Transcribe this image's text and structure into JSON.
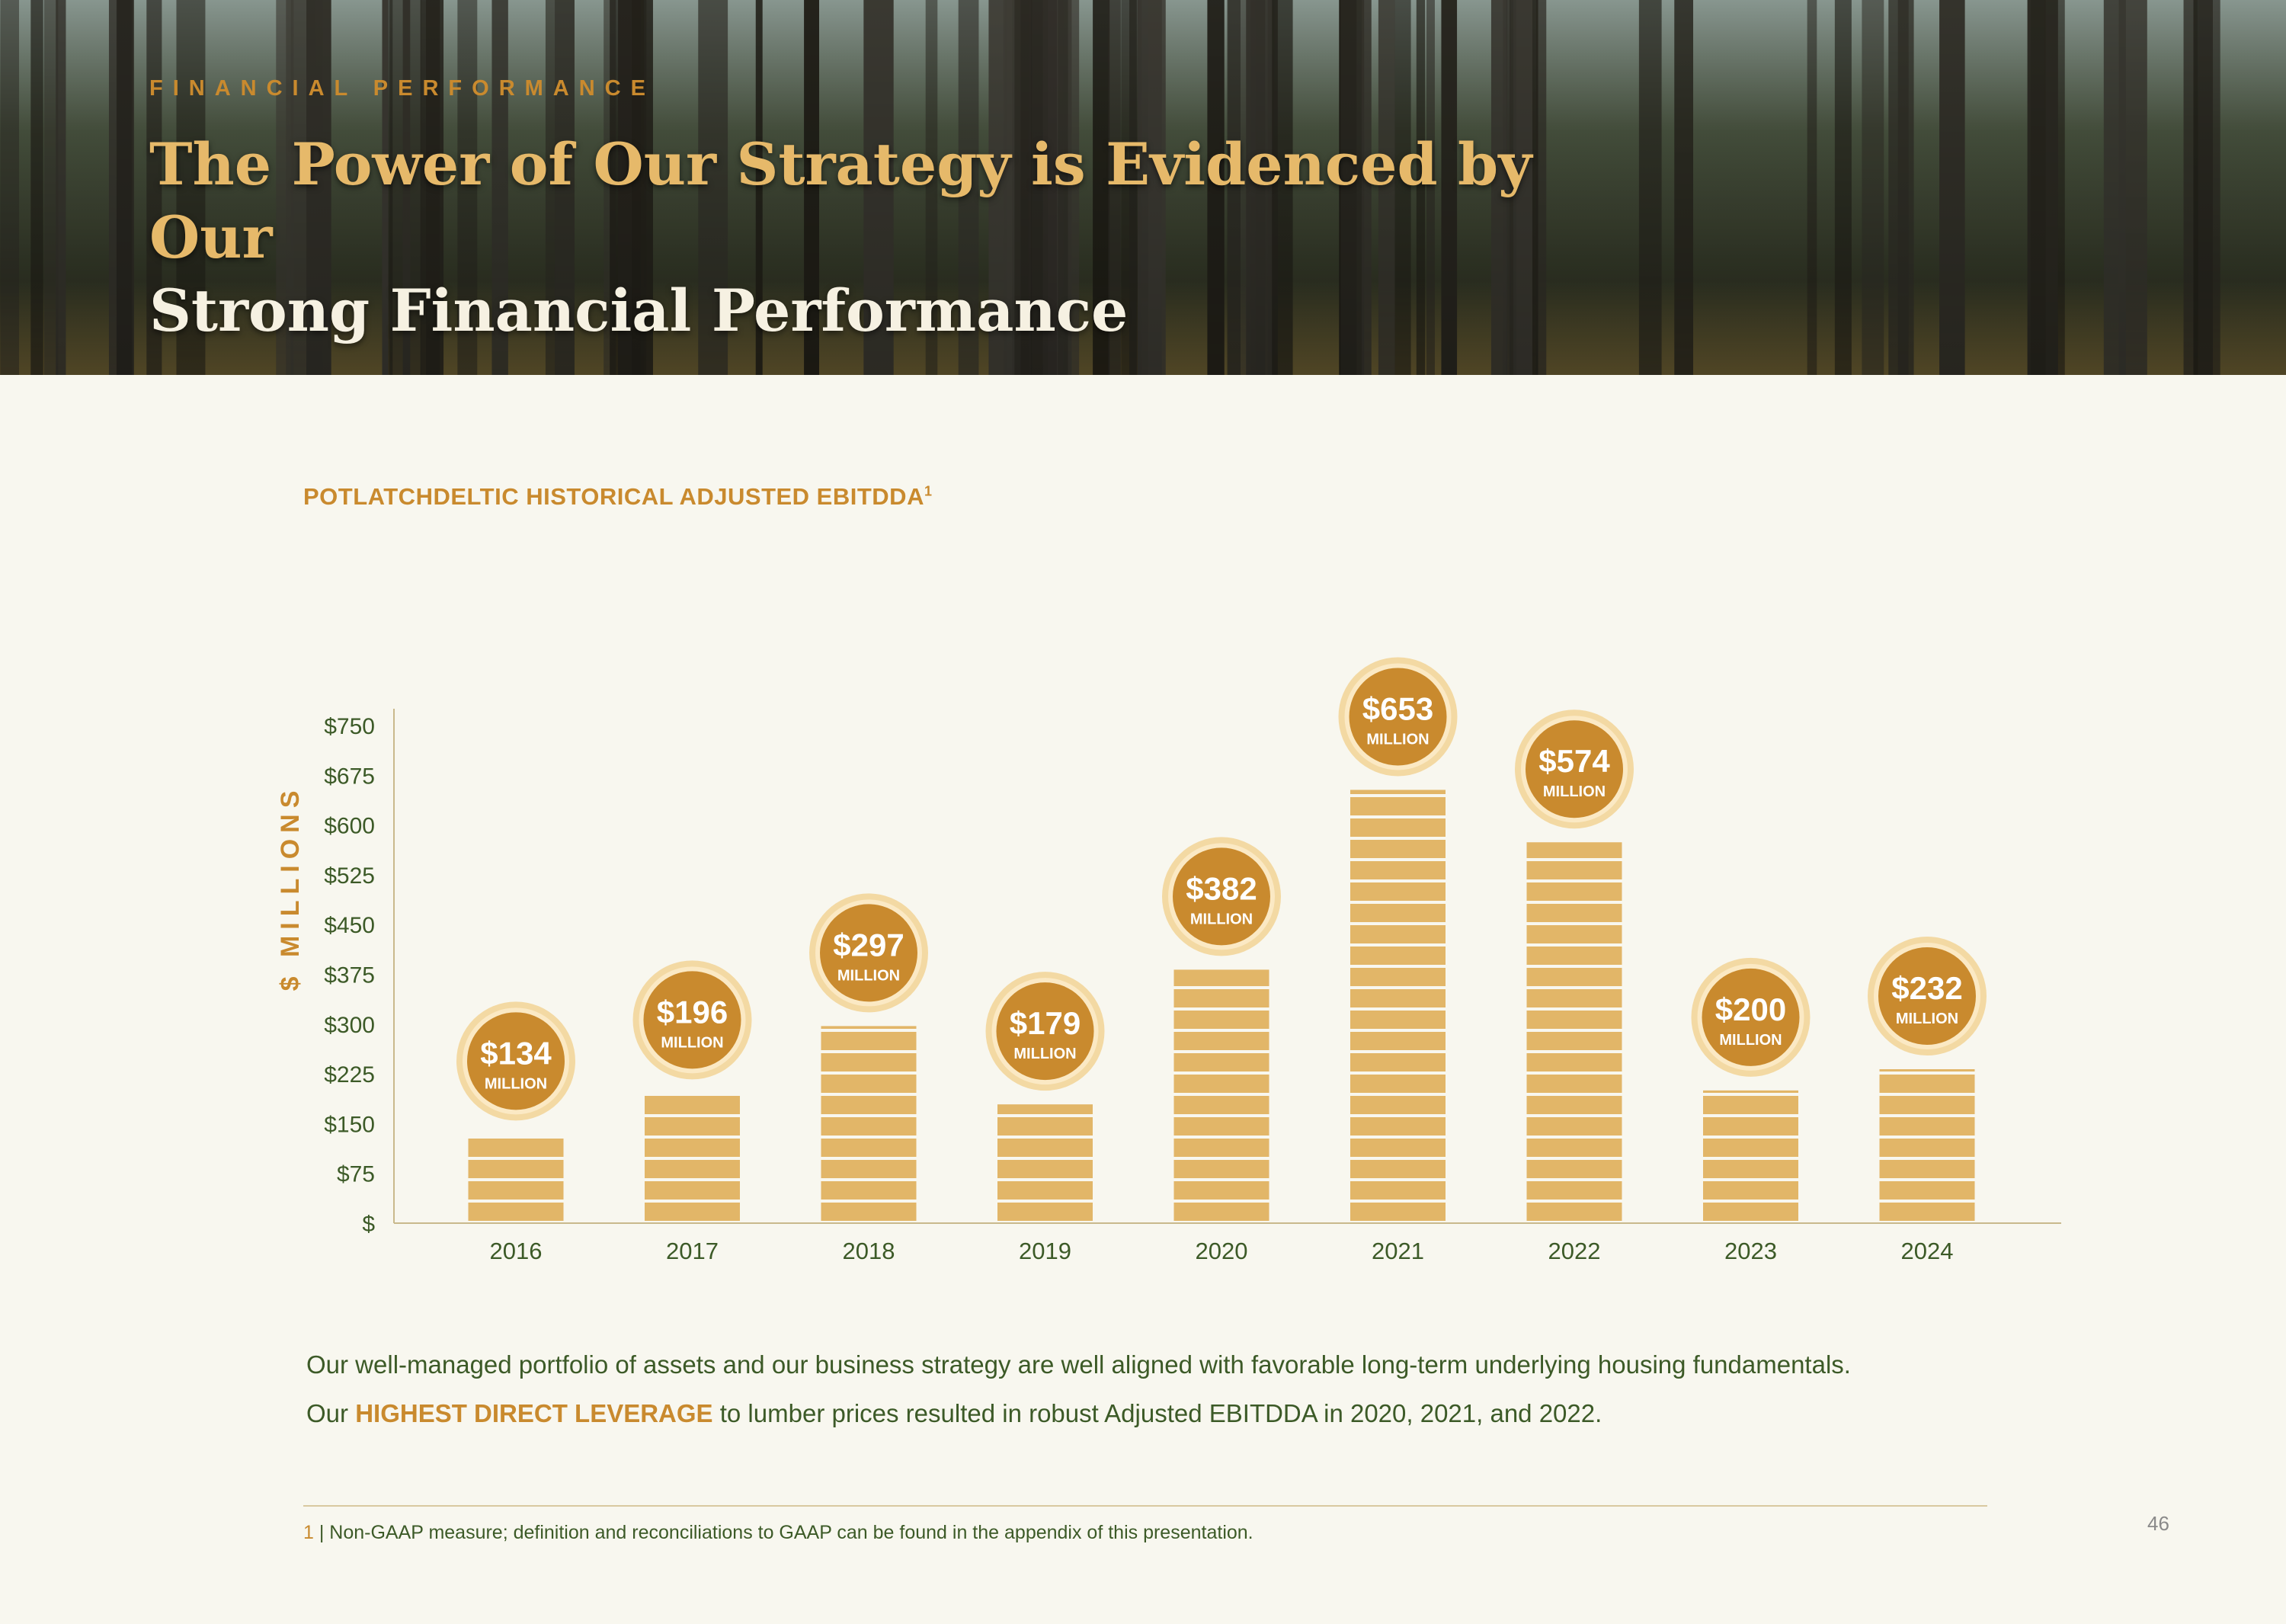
{
  "header": {
    "eyebrow": "FINANCIAL PERFORMANCE",
    "title_line1": "The Power of Our Strategy is Evidenced by Our",
    "title_line2": "Strong Financial Performance"
  },
  "colors": {
    "accent": "#c98a2e",
    "bar": "#e2b668",
    "badge": "#c98a2e",
    "text_green": "#3c5a27"
  },
  "chart_data": {
    "type": "bar",
    "title": "POTLATCHDELTIC HISTORICAL ADJUSTED EBITDDA",
    "title_sup": "1",
    "ylabel": "$ MILLIONS",
    "ylim": [
      0,
      750
    ],
    "yticks": [
      0,
      75,
      150,
      225,
      300,
      375,
      450,
      525,
      600,
      675,
      750
    ],
    "ytick_labels": [
      "$",
      "$75",
      "$150",
      "$225",
      "$300",
      "$375",
      "$450",
      "$525",
      "$600",
      "$675",
      "$750"
    ],
    "categories": [
      "2016",
      "2017",
      "2018",
      "2019",
      "2020",
      "2021",
      "2022",
      "2023",
      "2024"
    ],
    "values": [
      134,
      196,
      297,
      179,
      382,
      653,
      574,
      200,
      232
    ],
    "data_labels": [
      "$134",
      "$196",
      "$297",
      "$179",
      "$382",
      "$653",
      "$574",
      "$200",
      "$232"
    ],
    "data_label_unit": "MILLION",
    "grid": false
  },
  "body": {
    "line1": "Our well-managed portfolio of assets and our business strategy are well aligned with favorable long-term underlying housing fundamentals.",
    "line2_prefix": "Our ",
    "line2_highlight": "HIGHEST DIRECT LEVERAGE",
    "line2_suffix": " to lumber prices resulted in robust Adjusted EBITDDA in 2020, 2021, and 2022."
  },
  "footnote": {
    "number": "1",
    "text": " | Non-GAAP measure; definition and reconciliations to GAAP can be found in the appendix of this presentation."
  },
  "page_number": "46"
}
